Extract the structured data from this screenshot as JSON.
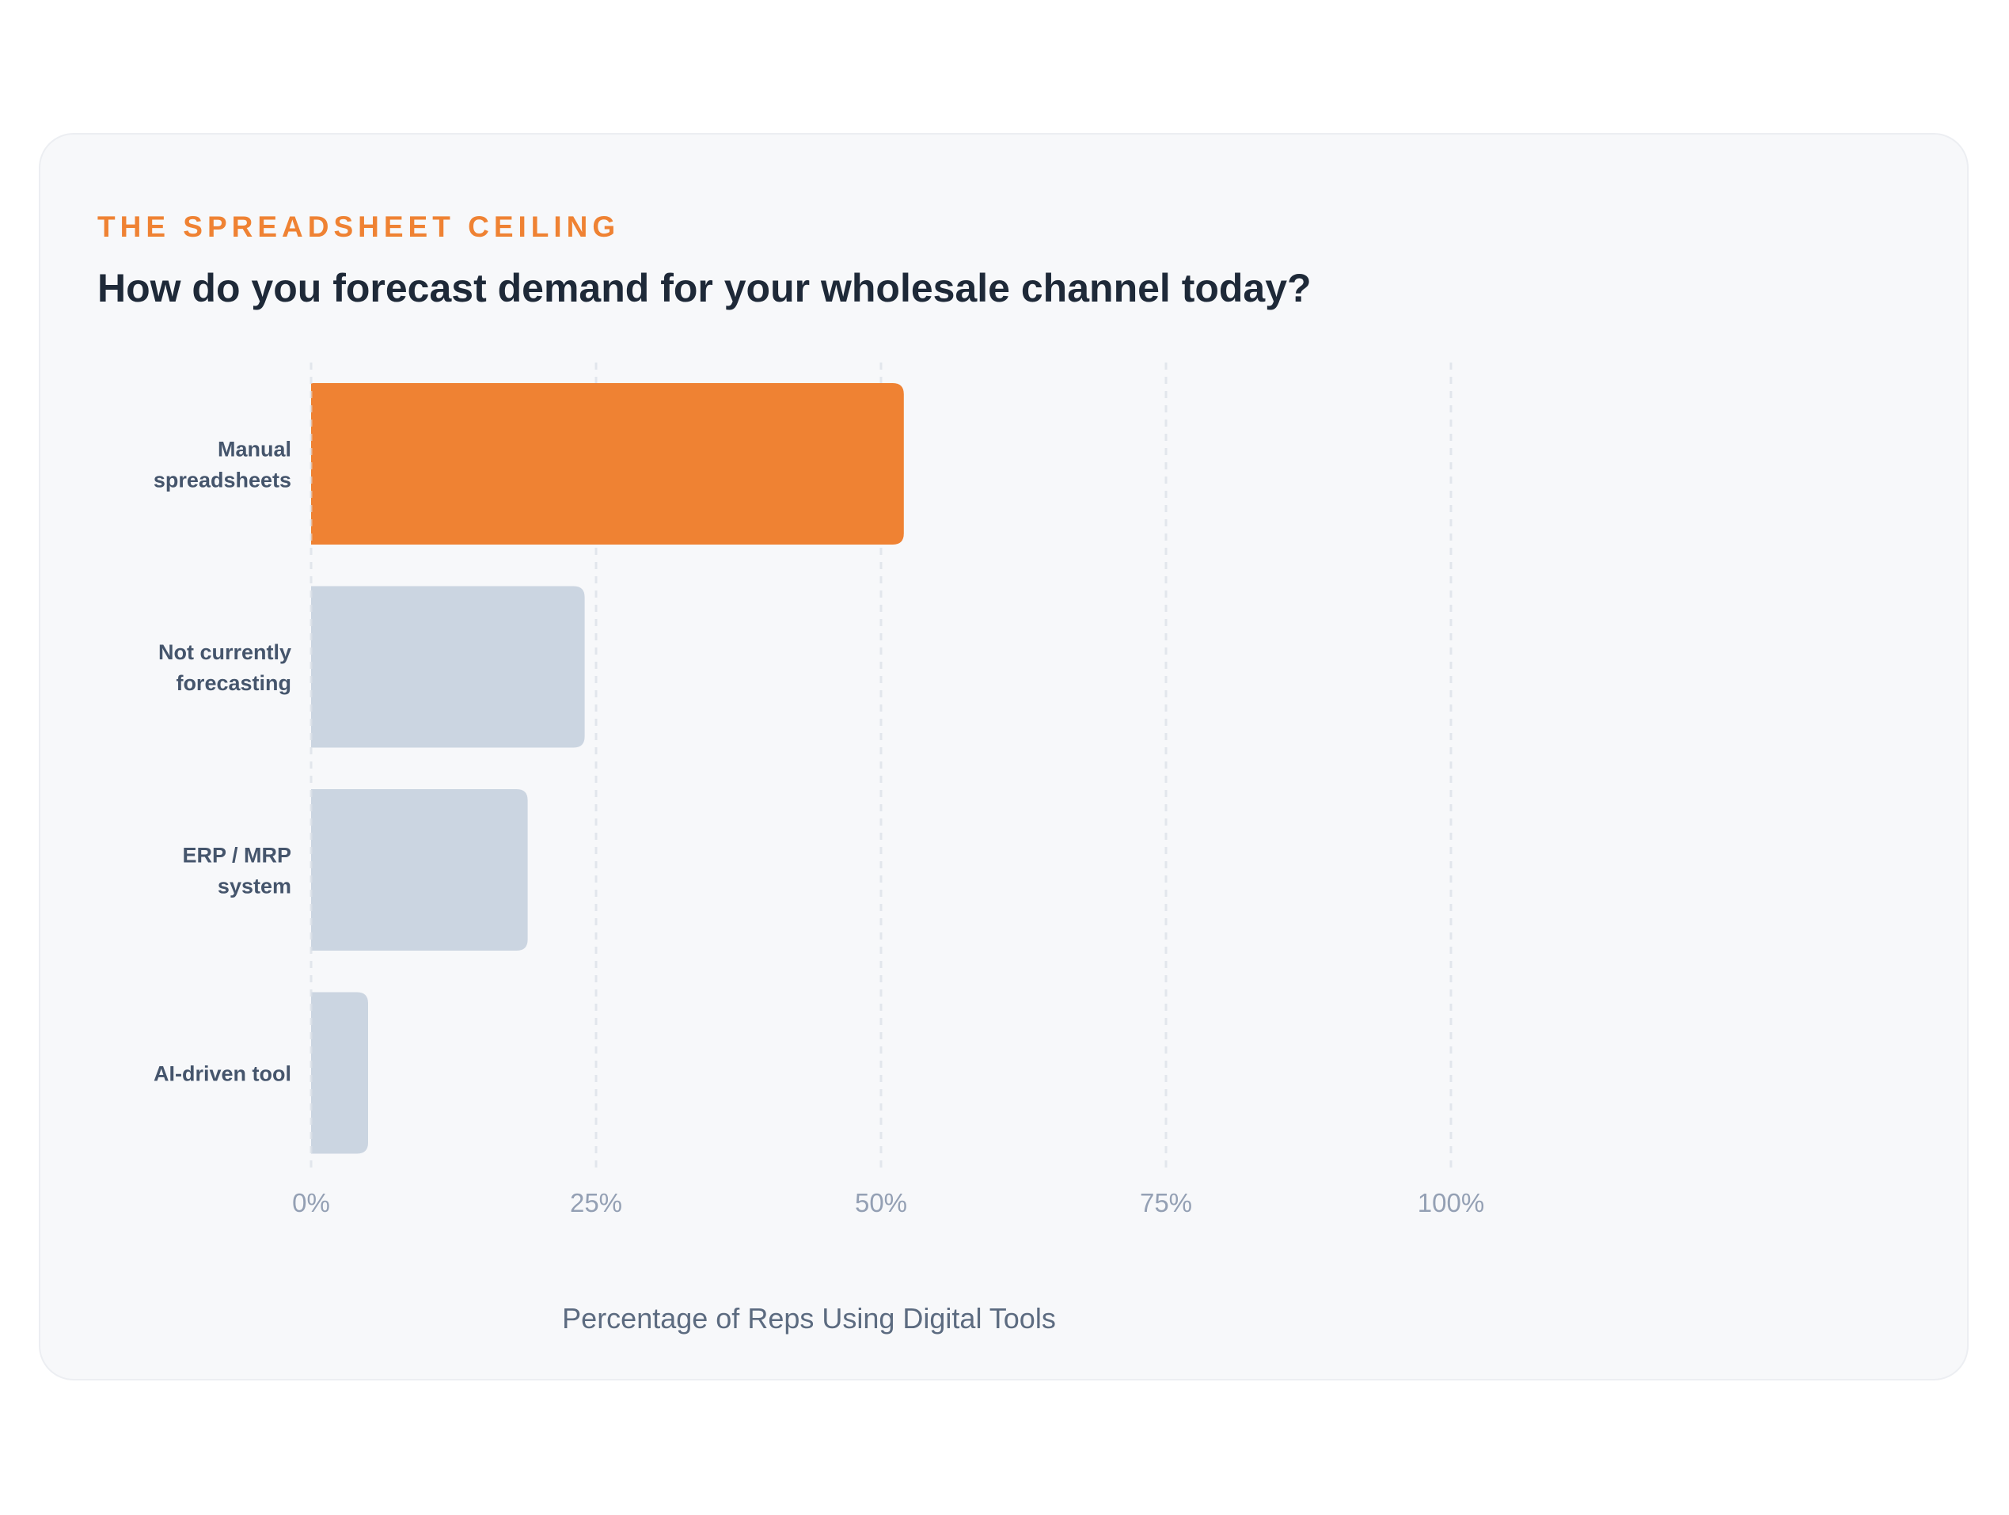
{
  "header": {
    "eyebrow": "THE SPREADSHEET CEILING",
    "title": "How do you forecast demand for your wholesale channel today?"
  },
  "colors": {
    "highlight": "#ef8233",
    "muted_bar": "#cbd5e1",
    "grid": "#e2e6ec",
    "card_background": "#f7f8fa"
  },
  "chart_data": {
    "type": "bar",
    "orientation": "horizontal",
    "categories": [
      [
        "Manual",
        "spreadsheets"
      ],
      [
        "Not currently",
        "forecasting"
      ],
      [
        "ERP / MRP",
        "system"
      ],
      [
        "AI-driven tool"
      ]
    ],
    "values": [
      52,
      24,
      19,
      5
    ],
    "highlight_index": 0,
    "xlim": [
      0,
      100
    ],
    "xticks": [
      0,
      25,
      50,
      75,
      100
    ],
    "xtick_labels": [
      "0%",
      "25%",
      "50%",
      "75%",
      "100%"
    ],
    "xlabel": "Percentage of Reps Using Digital Tools",
    "ylabel": "",
    "grid": "vertical dashed",
    "legend": "none"
  }
}
